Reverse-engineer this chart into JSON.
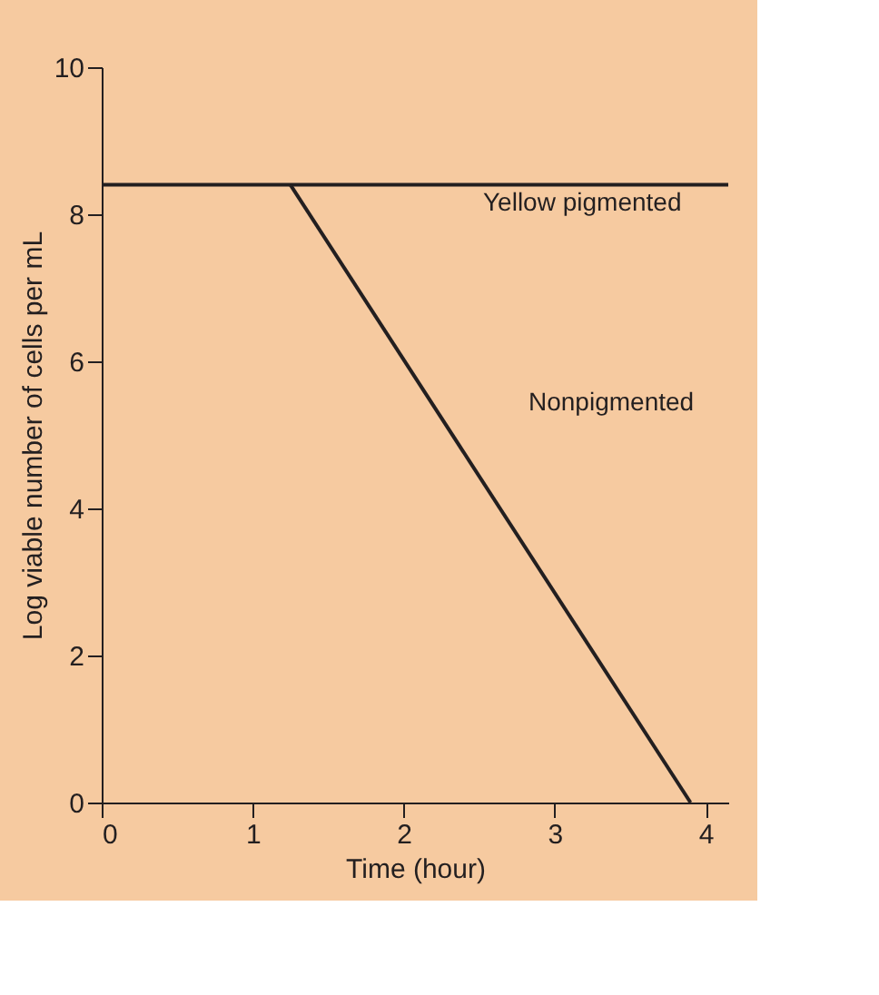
{
  "chart_data": {
    "type": "line",
    "xlabel": "Time (hour)",
    "ylabel": "Log viable number of cells per mL",
    "series": [
      {
        "x": [
          0,
          4.15
        ],
        "values": [
          8.4,
          8.4
        ],
        "color": "#231f20"
      },
      {
        "x": [
          1.25,
          3.9
        ],
        "values": [
          8.4,
          0
        ],
        "color": "#231f20"
      }
    ],
    "annotations": [
      "Yellow pigmented",
      "Nonpigmented"
    ],
    "xlim": [
      0,
      4.15
    ],
    "xticks": [
      0,
      1,
      2,
      3,
      4
    ],
    "ylim": [
      0,
      10
    ],
    "yticks": [
      0,
      2,
      4,
      6,
      8,
      10
    ],
    "grid": false,
    "legend": false,
    "marker": "none",
    "line_style": "solid"
  }
}
